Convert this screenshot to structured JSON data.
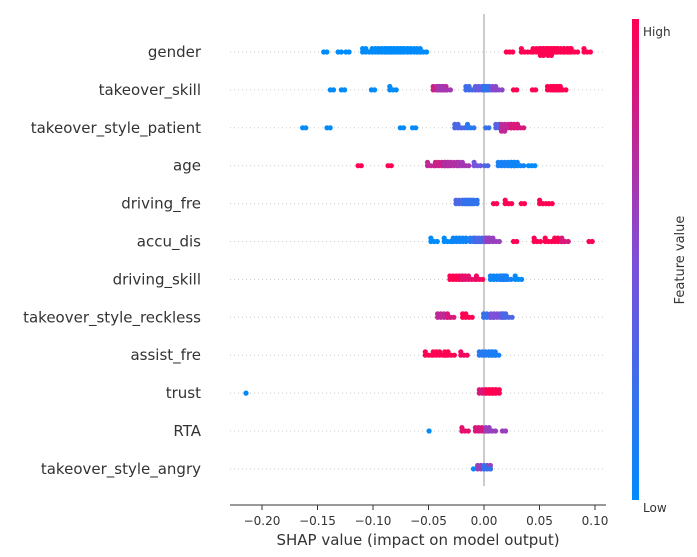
{
  "chart_data": {
    "type": "scatter",
    "subtype": "shap-beeswarm",
    "title": "",
    "xlabel": "SHAP value (impact on model output)",
    "ylabel": "",
    "xlim": [
      -0.23,
      0.11
    ],
    "x_ticks": [
      -0.2,
      -0.15,
      -0.1,
      -0.05,
      0.0,
      0.05,
      0.1
    ],
    "x_tick_labels": [
      "−0.20",
      "−0.15",
      "−0.10",
      "−0.05",
      "0.00",
      "0.05",
      "0.10"
    ],
    "grid": false,
    "zero_line": 0.0,
    "colorbar": {
      "title": "Feature value",
      "high_label": "High",
      "low_label": "Low",
      "low_color": "#008bfb",
      "high_color": "#ff0052"
    },
    "features": [
      {
        "name": "gender",
        "groups": [
          {
            "x": -0.143,
            "v": 0.0,
            "n": 2
          },
          {
            "x": -0.13,
            "v": 0.0,
            "n": 2
          },
          {
            "x": -0.123,
            "v": 0.0,
            "n": 2
          },
          {
            "x": -0.105,
            "v": 0.0,
            "n": 6
          },
          {
            "x": -0.095,
            "v": 0.0,
            "n": 10
          },
          {
            "x": -0.088,
            "v": 0.0,
            "n": 12
          },
          {
            "x": -0.08,
            "v": 0.0,
            "n": 12
          },
          {
            "x": -0.072,
            "v": 0.0,
            "n": 10
          },
          {
            "x": -0.063,
            "v": 0.0,
            "n": 8
          },
          {
            "x": -0.056,
            "v": 0.0,
            "n": 6
          },
          {
            "x": 0.023,
            "v": 1.0,
            "n": 3
          },
          {
            "x": 0.038,
            "v": 1.0,
            "n": 5
          },
          {
            "x": 0.05,
            "v": 1.0,
            "n": 10
          },
          {
            "x": 0.058,
            "v": 1.0,
            "n": 14
          },
          {
            "x": 0.065,
            "v": 1.0,
            "n": 14
          },
          {
            "x": 0.072,
            "v": 1.0,
            "n": 10
          },
          {
            "x": 0.08,
            "v": 1.0,
            "n": 6
          },
          {
            "x": 0.093,
            "v": 1.0,
            "n": 4
          }
        ]
      },
      {
        "name": "takeover_skill",
        "groups": [
          {
            "x": -0.137,
            "v": 0.0,
            "n": 2
          },
          {
            "x": -0.127,
            "v": 0.0,
            "n": 2
          },
          {
            "x": -0.1,
            "v": 0.0,
            "n": 2
          },
          {
            "x": -0.082,
            "v": 0.0,
            "n": 4
          },
          {
            "x": -0.04,
            "v": 0.8,
            "n": 10
          },
          {
            "x": -0.036,
            "v": 0.65,
            "n": 8
          },
          {
            "x": -0.012,
            "v": 0.25,
            "n": 6
          },
          {
            "x": -0.002,
            "v": 0.4,
            "n": 10
          },
          {
            "x": 0.005,
            "v": 0.2,
            "n": 8
          },
          {
            "x": 0.012,
            "v": 0.55,
            "n": 6
          },
          {
            "x": 0.028,
            "v": 1.0,
            "n": 2
          },
          {
            "x": 0.045,
            "v": 1.0,
            "n": 2
          },
          {
            "x": 0.063,
            "v": 1.0,
            "n": 10
          },
          {
            "x": 0.068,
            "v": 1.0,
            "n": 8
          }
        ]
      },
      {
        "name": "takeover_style_patient",
        "groups": [
          {
            "x": -0.162,
            "v": 0.0,
            "n": 2
          },
          {
            "x": -0.14,
            "v": 0.0,
            "n": 2
          },
          {
            "x": -0.074,
            "v": 0.0,
            "n": 2
          },
          {
            "x": -0.063,
            "v": 0.0,
            "n": 2
          },
          {
            "x": -0.022,
            "v": 0.3,
            "n": 6
          },
          {
            "x": -0.012,
            "v": 0.15,
            "n": 4
          },
          {
            "x": 0.003,
            "v": 0.2,
            "n": 2
          },
          {
            "x": 0.015,
            "v": 0.35,
            "n": 6
          },
          {
            "x": 0.023,
            "v": 0.75,
            "n": 14
          },
          {
            "x": 0.03,
            "v": 0.85,
            "n": 8
          }
        ]
      },
      {
        "name": "age",
        "groups": [
          {
            "x": -0.112,
            "v": 1.0,
            "n": 2
          },
          {
            "x": -0.085,
            "v": 1.0,
            "n": 2
          },
          {
            "x": -0.048,
            "v": 0.75,
            "n": 4
          },
          {
            "x": -0.038,
            "v": 0.8,
            "n": 10
          },
          {
            "x": -0.03,
            "v": 0.7,
            "n": 10
          },
          {
            "x": -0.018,
            "v": 0.65,
            "n": 6
          },
          {
            "x": -0.006,
            "v": 0.45,
            "n": 4
          },
          {
            "x": 0.002,
            "v": 0.3,
            "n": 2
          },
          {
            "x": 0.02,
            "v": 0.1,
            "n": 12
          },
          {
            "x": 0.03,
            "v": 0.05,
            "n": 8
          },
          {
            "x": 0.043,
            "v": 0.0,
            "n": 3
          }
        ]
      },
      {
        "name": "driving_fre",
        "groups": [
          {
            "x": -0.018,
            "v": 0.3,
            "n": 12
          },
          {
            "x": -0.012,
            "v": 0.2,
            "n": 10
          },
          {
            "x": 0.01,
            "v": 1.0,
            "n": 2
          },
          {
            "x": 0.022,
            "v": 1.0,
            "n": 4
          },
          {
            "x": 0.035,
            "v": 1.0,
            "n": 2
          },
          {
            "x": 0.053,
            "v": 1.0,
            "n": 4
          },
          {
            "x": 0.06,
            "v": 1.0,
            "n": 2
          }
        ]
      },
      {
        "name": "accu_dis",
        "groups": [
          {
            "x": -0.045,
            "v": 0.0,
            "n": 4
          },
          {
            "x": -0.033,
            "v": 0.0,
            "n": 4
          },
          {
            "x": -0.022,
            "v": 0.05,
            "n": 10
          },
          {
            "x": -0.008,
            "v": 0.15,
            "n": 6
          },
          {
            "x": -0.002,
            "v": 0.3,
            "n": 10
          },
          {
            "x": 0.008,
            "v": 0.6,
            "n": 8
          },
          {
            "x": 0.028,
            "v": 1.0,
            "n": 2
          },
          {
            "x": 0.048,
            "v": 1.0,
            "n": 4
          },
          {
            "x": 0.058,
            "v": 1.0,
            "n": 4
          },
          {
            "x": 0.068,
            "v": 1.0,
            "n": 6
          },
          {
            "x": 0.073,
            "v": 0.85,
            "n": 4
          },
          {
            "x": 0.096,
            "v": 1.0,
            "n": 2
          }
        ]
      },
      {
        "name": "driving_skill",
        "groups": [
          {
            "x": -0.025,
            "v": 1.0,
            "n": 10
          },
          {
            "x": -0.014,
            "v": 0.9,
            "n": 8
          },
          {
            "x": -0.004,
            "v": 0.95,
            "n": 4
          },
          {
            "x": 0.013,
            "v": 0.05,
            "n": 12
          },
          {
            "x": 0.02,
            "v": 0.1,
            "n": 6
          },
          {
            "x": 0.031,
            "v": 0.0,
            "n": 4
          }
        ]
      },
      {
        "name": "takeover_style_reckless",
        "groups": [
          {
            "x": -0.036,
            "v": 0.75,
            "n": 8
          },
          {
            "x": -0.03,
            "v": 0.85,
            "n": 4
          },
          {
            "x": -0.015,
            "v": 1.0,
            "n": 6
          },
          {
            "x": 0.004,
            "v": 0.2,
            "n": 6
          },
          {
            "x": 0.012,
            "v": 0.5,
            "n": 10
          },
          {
            "x": 0.021,
            "v": 0.3,
            "n": 6
          }
        ]
      },
      {
        "name": "assist_fre",
        "groups": [
          {
            "x": -0.05,
            "v": 1.0,
            "n": 4
          },
          {
            "x": -0.04,
            "v": 1.0,
            "n": 8
          },
          {
            "x": -0.031,
            "v": 1.0,
            "n": 6
          },
          {
            "x": -0.018,
            "v": 0.95,
            "n": 4
          },
          {
            "x": 0.003,
            "v": 0.15,
            "n": 12
          },
          {
            "x": 0.009,
            "v": 0.1,
            "n": 6
          }
        ]
      },
      {
        "name": "trust",
        "groups": [
          {
            "x": -0.213,
            "v": 0.0,
            "n": 1
          },
          {
            "x": 0.003,
            "v": 0.85,
            "n": 12
          },
          {
            "x": 0.008,
            "v": 1.0,
            "n": 10
          }
        ]
      },
      {
        "name": "RTA",
        "groups": [
          {
            "x": -0.048,
            "v": 0.0,
            "n": 1
          },
          {
            "x": -0.017,
            "v": 0.9,
            "n": 4
          },
          {
            "x": -0.002,
            "v": 0.85,
            "n": 8
          },
          {
            "x": 0.006,
            "v": 0.6,
            "n": 6
          },
          {
            "x": 0.018,
            "v": 0.6,
            "n": 2
          }
        ]
      },
      {
        "name": "takeover_style_angry",
        "groups": [
          {
            "x": -0.008,
            "v": 0.0,
            "n": 1
          },
          {
            "x": 0.0,
            "v": 0.6,
            "n": 10
          },
          {
            "x": 0.003,
            "v": 0.2,
            "n": 4
          }
        ]
      }
    ]
  }
}
